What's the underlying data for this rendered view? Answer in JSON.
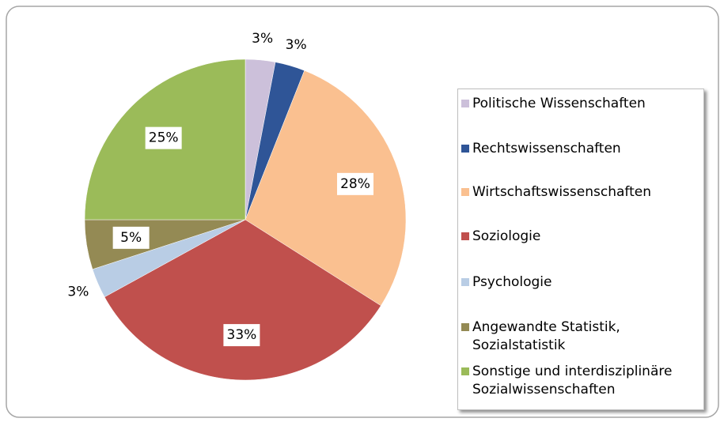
{
  "chart_data": {
    "type": "pie",
    "categories": [
      "Politische Wissenschaften",
      "Rechtswissenschaften",
      "Wirtschaftswissenschaften",
      "Soziologie",
      "Psychologie",
      "Angewandte Statistik, Sozialstatistik",
      "Sonstige und interdisziplinäre Sozialwissenschaften"
    ],
    "values": [
      3,
      3,
      28,
      33,
      3,
      5,
      25
    ],
    "value_labels": [
      "3%",
      "3%",
      "28%",
      "33%",
      "3%",
      "5%",
      "25%"
    ],
    "colors": [
      "#ccc0da",
      "#2f5597",
      "#fac090",
      "#c0504d",
      "#b9cde5",
      "#948a54",
      "#9bbb59"
    ],
    "legend": "right"
  }
}
